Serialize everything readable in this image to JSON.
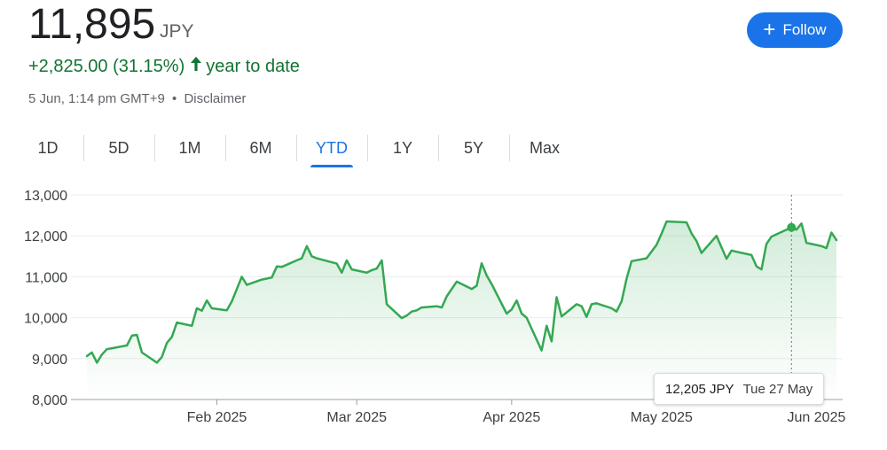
{
  "quote": {
    "price": "11,895",
    "currency": "JPY",
    "change": "+2,825.00 (31.15%)",
    "period": "year to date",
    "timestamp": "5 Jun, 1:14 pm GMT+9",
    "separator": "•",
    "disclaimer": "Disclaimer"
  },
  "follow_button": {
    "icon": "plus-icon",
    "label": "Follow"
  },
  "tabs": [
    {
      "label": "1D",
      "active": false
    },
    {
      "label": "5D",
      "active": false
    },
    {
      "label": "1M",
      "active": false
    },
    {
      "label": "6M",
      "active": false
    },
    {
      "label": "YTD",
      "active": true
    },
    {
      "label": "1Y",
      "active": false
    },
    {
      "label": "5Y",
      "active": false
    },
    {
      "label": "Max",
      "active": false
    }
  ],
  "tooltip": {
    "value": "12,205 JPY",
    "date": "Tue 27 May"
  },
  "colors": {
    "line": "#34a853",
    "accent": "#1a73e8",
    "positive": "#137333"
  },
  "chart_data": {
    "type": "area",
    "ylim": [
      8000,
      13000
    ],
    "yticks": [
      8000,
      9000,
      10000,
      11000,
      12000,
      13000
    ],
    "ytick_labels": [
      "8,000",
      "9,000",
      "10,000",
      "11,000",
      "12,000",
      "13,000"
    ],
    "xlim": [
      "2025-01-06",
      "2025-06-05"
    ],
    "xticks": [
      {
        "date": "2025-02-01",
        "label": "Feb 2025"
      },
      {
        "date": "2025-03-01",
        "label": "Mar 2025"
      },
      {
        "date": "2025-04-01",
        "label": "Apr 2025"
      },
      {
        "date": "2025-05-01",
        "label": "May 2025"
      },
      {
        "date": "2025-06-01",
        "label": "Jun 2025"
      }
    ],
    "highlight": {
      "x": "2025-05-27",
      "y": 12205
    },
    "grid": true,
    "series": [
      {
        "points": [
          [
            "2025-01-06",
            9060
          ],
          [
            "2025-01-07",
            9150
          ],
          [
            "2025-01-08",
            8900
          ],
          [
            "2025-01-09",
            9100
          ],
          [
            "2025-01-10",
            9230
          ],
          [
            "2025-01-14",
            9320
          ],
          [
            "2025-01-15",
            9560
          ],
          [
            "2025-01-16",
            9580
          ],
          [
            "2025-01-17",
            9150
          ],
          [
            "2025-01-20",
            8900
          ],
          [
            "2025-01-21",
            9040
          ],
          [
            "2025-01-22",
            9380
          ],
          [
            "2025-01-23",
            9530
          ],
          [
            "2025-01-24",
            9880
          ],
          [
            "2025-01-27",
            9800
          ],
          [
            "2025-01-28",
            10230
          ],
          [
            "2025-01-29",
            10170
          ],
          [
            "2025-01-30",
            10420
          ],
          [
            "2025-01-31",
            10230
          ],
          [
            "2025-02-03",
            10180
          ],
          [
            "2025-02-04",
            10400
          ],
          [
            "2025-02-05",
            10700
          ],
          [
            "2025-02-06",
            11000
          ],
          [
            "2025-02-07",
            10800
          ],
          [
            "2025-02-10",
            10930
          ],
          [
            "2025-02-12",
            10980
          ],
          [
            "2025-02-13",
            11250
          ],
          [
            "2025-02-14",
            11240
          ],
          [
            "2025-02-17",
            11400
          ],
          [
            "2025-02-18",
            11450
          ],
          [
            "2025-02-19",
            11750
          ],
          [
            "2025-02-20",
            11500
          ],
          [
            "2025-02-21",
            11450
          ],
          [
            "2025-02-25",
            11320
          ],
          [
            "2025-02-26",
            11100
          ],
          [
            "2025-02-27",
            11400
          ],
          [
            "2025-02-28",
            11180
          ],
          [
            "2025-03-03",
            11100
          ],
          [
            "2025-03-04",
            11160
          ],
          [
            "2025-03-05",
            11200
          ],
          [
            "2025-03-06",
            11400
          ],
          [
            "2025-03-07",
            10330
          ],
          [
            "2025-03-10",
            9990
          ],
          [
            "2025-03-11",
            10050
          ],
          [
            "2025-03-12",
            10150
          ],
          [
            "2025-03-13",
            10180
          ],
          [
            "2025-03-14",
            10250
          ],
          [
            "2025-03-17",
            10280
          ],
          [
            "2025-03-18",
            10250
          ],
          [
            "2025-03-19",
            10520
          ],
          [
            "2025-03-21",
            10880
          ],
          [
            "2025-03-24",
            10700
          ],
          [
            "2025-03-25",
            10780
          ],
          [
            "2025-03-26",
            11330
          ],
          [
            "2025-03-27",
            11030
          ],
          [
            "2025-03-28",
            10820
          ],
          [
            "2025-03-31",
            10100
          ],
          [
            "2025-04-01",
            10200
          ],
          [
            "2025-04-02",
            10420
          ],
          [
            "2025-04-03",
            10100
          ],
          [
            "2025-04-04",
            10000
          ],
          [
            "2025-04-07",
            9200
          ],
          [
            "2025-04-08",
            9800
          ],
          [
            "2025-04-09",
            9420
          ],
          [
            "2025-04-10",
            10500
          ],
          [
            "2025-04-11",
            10030
          ],
          [
            "2025-04-14",
            10330
          ],
          [
            "2025-04-15",
            10280
          ],
          [
            "2025-04-16",
            10020
          ],
          [
            "2025-04-17",
            10330
          ],
          [
            "2025-04-18",
            10350
          ],
          [
            "2025-04-21",
            10230
          ],
          [
            "2025-04-22",
            10150
          ],
          [
            "2025-04-23",
            10400
          ],
          [
            "2025-04-24",
            10950
          ],
          [
            "2025-04-25",
            11380
          ],
          [
            "2025-04-28",
            11450
          ],
          [
            "2025-04-30",
            11780
          ],
          [
            "2025-05-01",
            12050
          ],
          [
            "2025-05-02",
            12350
          ],
          [
            "2025-05-06",
            12330
          ],
          [
            "2025-05-07",
            12060
          ],
          [
            "2025-05-08",
            11870
          ],
          [
            "2025-05-09",
            11580
          ],
          [
            "2025-05-12",
            12000
          ],
          [
            "2025-05-13",
            11720
          ],
          [
            "2025-05-14",
            11440
          ],
          [
            "2025-05-15",
            11640
          ],
          [
            "2025-05-16",
            11610
          ],
          [
            "2025-05-19",
            11530
          ],
          [
            "2025-05-20",
            11250
          ],
          [
            "2025-05-21",
            11180
          ],
          [
            "2025-05-22",
            11800
          ],
          [
            "2025-05-23",
            11980
          ],
          [
            "2025-05-27",
            12205
          ],
          [
            "2025-05-28",
            12150
          ],
          [
            "2025-05-29",
            12300
          ],
          [
            "2025-05-30",
            11830
          ],
          [
            "2025-06-02",
            11750
          ],
          [
            "2025-06-03",
            11700
          ],
          [
            "2025-06-04",
            12080
          ],
          [
            "2025-06-05",
            11895
          ]
        ]
      }
    ]
  }
}
